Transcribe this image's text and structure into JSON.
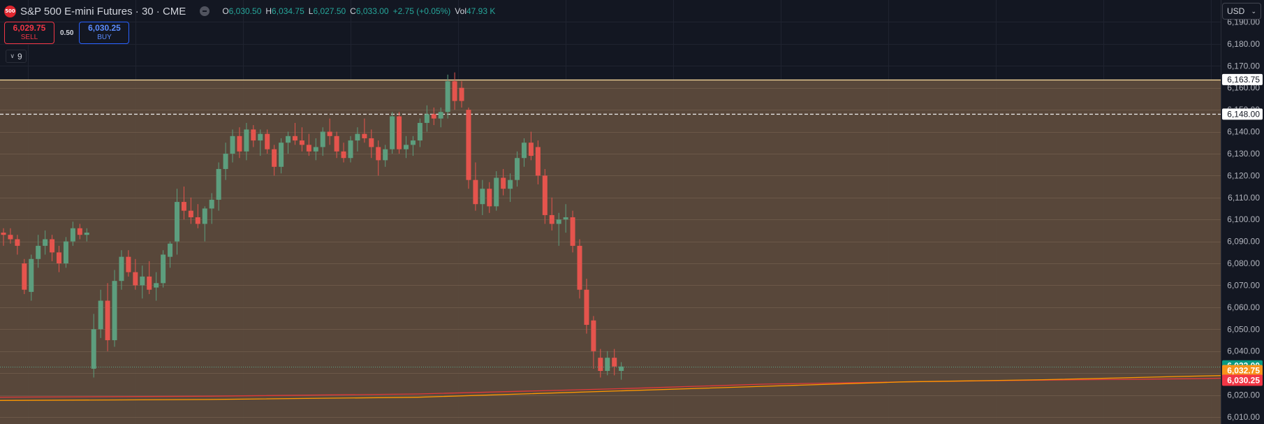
{
  "header": {
    "logo_text": "500",
    "title": "S&P 500 E-mini Futures · 30 · CME",
    "open_label": "O",
    "open": "6,030.50",
    "high_label": "H",
    "high": "6,034.75",
    "low_label": "L",
    "low": "6,027.50",
    "close_label": "C",
    "close": "6,033.00",
    "change": "+2.75 (+0.05%)",
    "vol_label": "Vol",
    "vol": "47.93 K"
  },
  "trade": {
    "sell_price": "6,029.75",
    "sell_label": "SELL",
    "spread": "0.50",
    "buy_price": "6,030.25",
    "buy_label": "BUY"
  },
  "indicators": {
    "count": "9"
  },
  "currency": {
    "selected": "USD"
  },
  "colors": {
    "up": "#5d9e7e",
    "down": "#e5544d",
    "zone": "#5c4a3b",
    "ema_orange": "#ff9800",
    "ema_red": "#e03a3a",
    "badge_last": "#089981",
    "badge_orange": "#f7931a",
    "badge_red": "#f23645"
  },
  "chart_data": {
    "type": "candlestick",
    "yticks": [
      "6,190.00",
      "6,180.00",
      "6,170.00",
      "6,160.00",
      "6,150.00",
      "6,140.00",
      "6,130.00",
      "6,120.00",
      "6,110.00",
      "6,100.00",
      "6,090.00",
      "6,080.00",
      "6,070.00",
      "6,060.00",
      "6,050.00",
      "6,040.00",
      "6,030.00",
      "6,020.00",
      "6,010.00"
    ],
    "ylim": [
      6010,
      6193
    ],
    "zone": {
      "from": 6163.75,
      "to": 6003
    },
    "levels": [
      {
        "value": 6163.75,
        "label": "6,163.75",
        "style": "solid"
      },
      {
        "value": 6148.0,
        "label": "6,148.00",
        "style": "dashed"
      }
    ],
    "price_badges": [
      {
        "value": 6033.0,
        "label": "6,033.00",
        "kind": "last"
      },
      {
        "value": 6032.75,
        "label": "6,032.75",
        "kind": "orange"
      },
      {
        "value": 6030.25,
        "label": "6,030.25",
        "kind": "red"
      }
    ],
    "last_price": 6033.0,
    "candles": [
      [
        6094,
        6096,
        6088,
        6093
      ],
      [
        6093,
        6096,
        6089,
        6091
      ],
      [
        6091,
        6093,
        6084,
        6088
      ],
      [
        6080,
        6082,
        6066,
        6068
      ],
      [
        6067,
        6084,
        6063,
        6082
      ],
      [
        6082,
        6093,
        6078,
        6088
      ],
      [
        6088,
        6095,
        6084,
        6091
      ],
      [
        6091,
        6093,
        6081,
        6085
      ],
      [
        6085,
        6088,
        6076,
        6080
      ],
      [
        6080,
        6092,
        6078,
        6090
      ],
      [
        6090,
        6099,
        6088,
        6096
      ],
      [
        6096,
        6098,
        6091,
        6093
      ],
      [
        6093,
        6096,
        6090,
        6094
      ],
      [
        6032,
        6057,
        6028,
        6050
      ],
      [
        6050,
        6068,
        6046,
        6063
      ],
      [
        6063,
        6071,
        6040,
        6045
      ],
      [
        6045,
        6077,
        6042,
        6072
      ],
      [
        6072,
        6086,
        6068,
        6083
      ],
      [
        6083,
        6086,
        6074,
        6076
      ],
      [
        6076,
        6082,
        6068,
        6070
      ],
      [
        6070,
        6079,
        6064,
        6074
      ],
      [
        6074,
        6081,
        6066,
        6068
      ],
      [
        6069,
        6076,
        6063,
        6071
      ],
      [
        6071,
        6086,
        6069,
        6084
      ],
      [
        6083,
        6090,
        6078,
        6089
      ],
      [
        6090,
        6114,
        6084,
        6108
      ],
      [
        6108,
        6115,
        6100,
        6104
      ],
      [
        6104,
        6110,
        6098,
        6101
      ],
      [
        6101,
        6107,
        6096,
        6098
      ],
      [
        6098,
        6106,
        6090,
        6105
      ],
      [
        6105,
        6112,
        6098,
        6109
      ],
      [
        6109,
        6126,
        6104,
        6123
      ],
      [
        6123,
        6135,
        6118,
        6130
      ],
      [
        6130,
        6141,
        6126,
        6138
      ],
      [
        6138,
        6142,
        6128,
        6131
      ],
      [
        6131,
        6144,
        6127,
        6141
      ],
      [
        6141,
        6143,
        6133,
        6136
      ],
      [
        6136,
        6141,
        6129,
        6139
      ],
      [
        6139,
        6141,
        6130,
        6132
      ],
      [
        6132,
        6134,
        6120,
        6124
      ],
      [
        6124,
        6137,
        6121,
        6135
      ],
      [
        6135,
        6140,
        6130,
        6138
      ],
      [
        6138,
        6144,
        6134,
        6136
      ],
      [
        6136,
        6142,
        6131,
        6134
      ],
      [
        6134,
        6139,
        6129,
        6131
      ],
      [
        6131,
        6137,
        6127,
        6133
      ],
      [
        6133,
        6142,
        6129,
        6140
      ],
      [
        6140,
        6146,
        6134,
        6138
      ],
      [
        6138,
        6140,
        6128,
        6131
      ],
      [
        6131,
        6135,
        6126,
        6128
      ],
      [
        6128,
        6138,
        6126,
        6136
      ],
      [
        6136,
        6142,
        6131,
        6139
      ],
      [
        6139,
        6146,
        6135,
        6137
      ],
      [
        6137,
        6141,
        6128,
        6133
      ],
      [
        6133,
        6136,
        6120,
        6127
      ],
      [
        6127,
        6134,
        6124,
        6132
      ],
      [
        6132,
        6149,
        6130,
        6147
      ],
      [
        6147,
        6149,
        6130,
        6132
      ],
      [
        6132,
        6138,
        6128,
        6134
      ],
      [
        6134,
        6138,
        6129,
        6136
      ],
      [
        6136,
        6146,
        6133,
        6144
      ],
      [
        6144,
        6152,
        6140,
        6148
      ],
      [
        6148,
        6151,
        6143,
        6146
      ],
      [
        6146,
        6151,
        6142,
        6149
      ],
      [
        6149,
        6166,
        6146,
        6163
      ],
      [
        6163,
        6167,
        6150,
        6154
      ],
      [
        6160,
        6163,
        6151,
        6154
      ],
      [
        6150,
        6151,
        6114,
        6118
      ],
      [
        6118,
        6126,
        6104,
        6107
      ],
      [
        6107,
        6118,
        6102,
        6114
      ],
      [
        6114,
        6117,
        6103,
        6106
      ],
      [
        6106,
        6122,
        6104,
        6119
      ],
      [
        6119,
        6123,
        6111,
        6114
      ],
      [
        6114,
        6121,
        6108,
        6118
      ],
      [
        6118,
        6131,
        6115,
        6128
      ],
      [
        6128,
        6137,
        6124,
        6135
      ],
      [
        6135,
        6140,
        6127,
        6129
      ],
      [
        6133,
        6136,
        6116,
        6120
      ],
      [
        6120,
        6123,
        6098,
        6102
      ],
      [
        6102,
        6110,
        6095,
        6098
      ],
      [
        6098,
        6103,
        6088,
        6100
      ],
      [
        6100,
        6107,
        6094,
        6101
      ],
      [
        6101,
        6104,
        6085,
        6088
      ],
      [
        6088,
        6091,
        6064,
        6068
      ],
      [
        6068,
        6073,
        6048,
        6052
      ],
      [
        6054,
        6056,
        6032,
        6040
      ],
      [
        6037,
        6041,
        6028,
        6031
      ],
      [
        6031,
        6040,
        6029,
        6037
      ],
      [
        6037,
        6041,
        6029,
        6033
      ],
      [
        6031,
        6035,
        6027,
        6033
      ]
    ],
    "ema_orange": [
      [
        -2,
        6017.5
      ],
      [
        30,
        6018
      ],
      [
        60,
        6019
      ],
      [
        90,
        6022
      ],
      [
        110,
        6024
      ],
      [
        130,
        6026
      ],
      [
        150,
        6027
      ],
      [
        170,
        6028.5
      ],
      [
        200,
        6030.5
      ],
      [
        220,
        6031.5
      ],
      [
        240,
        6032.3
      ],
      [
        260,
        6032.8
      ],
      [
        290,
        6033
      ],
      [
        306,
        6032.9
      ]
    ],
    "ema_red": [
      [
        -2,
        6019
      ],
      [
        30,
        6019.5
      ],
      [
        60,
        6020.5
      ],
      [
        90,
        6023
      ],
      [
        110,
        6025
      ],
      [
        130,
        6026
      ],
      [
        150,
        6026.8
      ],
      [
        170,
        6027.4
      ],
      [
        200,
        6028.8
      ],
      [
        220,
        6029.6
      ],
      [
        240,
        6030
      ],
      [
        260,
        6030.2
      ],
      [
        290,
        6030.3
      ],
      [
        306,
        6030.2
      ]
    ]
  }
}
